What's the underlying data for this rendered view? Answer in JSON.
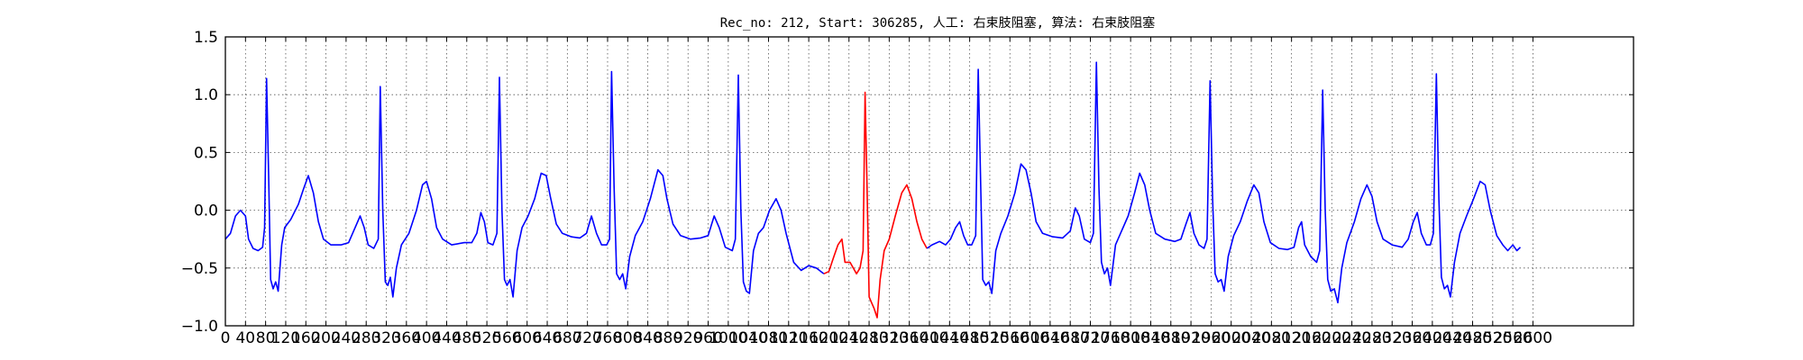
{
  "chart_data": {
    "type": "line",
    "title": "Rec_no: 212, Start: 306285, 人工: 右束肢阻塞, 算法: 右束肢阻塞",
    "xlabel": "",
    "ylabel": "",
    "xlim": [
      0,
      2800
    ],
    "ylim": [
      -1.0,
      1.5
    ],
    "grid": true,
    "grid_style": "dotted",
    "x_ticks": [
      0,
      40,
      80,
      120,
      160,
      200,
      240,
      280,
      320,
      360,
      400,
      440,
      480,
      520,
      560,
      600,
      640,
      680,
      720,
      760,
      800,
      840,
      880,
      920,
      960,
      1000,
      1040,
      1080,
      1120,
      1160,
      1200,
      1240,
      1280,
      1320,
      1360,
      1400,
      1440,
      1480,
      1520,
      1560,
      1600,
      1640,
      1680,
      1720,
      1760,
      1800,
      1840,
      1880,
      1920,
      1960,
      2000,
      2040,
      2080,
      2120,
      2160,
      2200,
      2240,
      2280,
      2320,
      2360,
      2400,
      2440,
      2480,
      2520,
      2560,
      2600
    ],
    "y_ticks": [
      "1.5",
      "1.0",
      "0.5",
      "0.0",
      "−0.5",
      "−1.0"
    ],
    "y_tick_values": [
      1.5,
      1.0,
      0.5,
      0.0,
      -0.5,
      -1.0
    ],
    "colors": {
      "normal": "#0000ff",
      "highlight": "#ff0000"
    },
    "series": [
      {
        "color": "#0000ff",
        "points": [
          [
            0,
            -0.25
          ],
          [
            10,
            -0.2
          ],
          [
            20,
            -0.05
          ],
          [
            30,
            0.0
          ],
          [
            40,
            -0.05
          ],
          [
            46,
            -0.25
          ],
          [
            55,
            -0.33
          ],
          [
            65,
            -0.35
          ],
          [
            74,
            -0.32
          ],
          [
            78,
            -0.15
          ],
          [
            82,
            1.14
          ],
          [
            86,
            0.3
          ],
          [
            90,
            -0.6
          ],
          [
            95,
            -0.68
          ],
          [
            100,
            -0.62
          ],
          [
            105,
            -0.7
          ],
          [
            112,
            -0.3
          ],
          [
            118,
            -0.15
          ],
          [
            130,
            -0.08
          ],
          [
            145,
            0.05
          ],
          [
            155,
            0.18
          ],
          [
            165,
            0.3
          ],
          [
            175,
            0.15
          ],
          [
            185,
            -0.1
          ],
          [
            195,
            -0.25
          ],
          [
            210,
            -0.3
          ],
          [
            230,
            -0.3
          ],
          [
            245,
            -0.28
          ],
          [
            258,
            -0.15
          ],
          [
            268,
            -0.05
          ],
          [
            276,
            -0.15
          ],
          [
            284,
            -0.3
          ],
          [
            295,
            -0.33
          ],
          [
            304,
            -0.25
          ],
          [
            308,
            1.07
          ],
          [
            313,
            0.0
          ],
          [
            318,
            -0.62
          ],
          [
            323,
            -0.65
          ],
          [
            328,
            -0.58
          ],
          [
            333,
            -0.75
          ],
          [
            340,
            -0.5
          ],
          [
            350,
            -0.3
          ],
          [
            365,
            -0.2
          ],
          [
            380,
            0.0
          ],
          [
            392,
            0.22
          ],
          [
            400,
            0.25
          ],
          [
            410,
            0.1
          ],
          [
            420,
            -0.15
          ],
          [
            432,
            -0.25
          ],
          [
            450,
            -0.3
          ],
          [
            475,
            -0.28
          ],
          [
            490,
            -0.28
          ],
          [
            500,
            -0.2
          ],
          [
            508,
            -0.02
          ],
          [
            515,
            -0.1
          ],
          [
            522,
            -0.28
          ],
          [
            532,
            -0.3
          ],
          [
            540,
            -0.2
          ],
          [
            545,
            1.15
          ],
          [
            550,
            0.0
          ],
          [
            555,
            -0.6
          ],
          [
            560,
            -0.65
          ],
          [
            566,
            -0.6
          ],
          [
            572,
            -0.75
          ],
          [
            580,
            -0.35
          ],
          [
            590,
            -0.15
          ],
          [
            602,
            -0.05
          ],
          [
            615,
            0.1
          ],
          [
            628,
            0.32
          ],
          [
            638,
            0.3
          ],
          [
            646,
            0.12
          ],
          [
            658,
            -0.12
          ],
          [
            670,
            -0.2
          ],
          [
            688,
            -0.23
          ],
          [
            705,
            -0.24
          ],
          [
            718,
            -0.2
          ],
          [
            728,
            -0.05
          ],
          [
            738,
            -0.2
          ],
          [
            748,
            -0.3
          ],
          [
            758,
            -0.3
          ],
          [
            764,
            -0.25
          ],
          [
            768,
            1.2
          ],
          [
            773,
            0.2
          ],
          [
            778,
            -0.55
          ],
          [
            784,
            -0.6
          ],
          [
            790,
            -0.55
          ],
          [
            796,
            -0.68
          ],
          [
            804,
            -0.4
          ],
          [
            815,
            -0.22
          ],
          [
            830,
            -0.1
          ],
          [
            845,
            0.1
          ],
          [
            860,
            0.35
          ],
          [
            870,
            0.3
          ],
          [
            878,
            0.1
          ],
          [
            890,
            -0.12
          ],
          [
            905,
            -0.22
          ],
          [
            925,
            -0.25
          ],
          [
            945,
            -0.24
          ],
          [
            960,
            -0.22
          ],
          [
            972,
            -0.05
          ],
          [
            982,
            -0.15
          ],
          [
            994,
            -0.32
          ],
          [
            1008,
            -0.35
          ],
          [
            1014,
            -0.25
          ],
          [
            1020,
            1.17
          ],
          [
            1025,
            0.0
          ],
          [
            1030,
            -0.62
          ],
          [
            1036,
            -0.7
          ],
          [
            1042,
            -0.72
          ],
          [
            1050,
            -0.35
          ],
          [
            1060,
            -0.2
          ],
          [
            1070,
            -0.15
          ],
          [
            1082,
            0.0
          ],
          [
            1095,
            0.1
          ],
          [
            1105,
            0.0
          ],
          [
            1115,
            -0.2
          ],
          [
            1130,
            -0.45
          ],
          [
            1145,
            -0.52
          ],
          [
            1160,
            -0.48
          ],
          [
            1175,
            -0.5
          ],
          [
            1190,
            -0.55
          ]
        ]
      },
      {
        "color": "#ff0000",
        "points": [
          [
            1190,
            -0.55
          ],
          [
            1200,
            -0.53
          ],
          [
            1210,
            -0.4
          ],
          [
            1218,
            -0.3
          ],
          [
            1226,
            -0.25
          ],
          [
            1232,
            -0.45
          ],
          [
            1242,
            -0.45
          ],
          [
            1255,
            -0.55
          ],
          [
            1262,
            -0.5
          ],
          [
            1268,
            -0.35
          ],
          [
            1272,
            1.02
          ],
          [
            1276,
            0.2
          ],
          [
            1280,
            -0.75
          ],
          [
            1285,
            -0.8
          ],
          [
            1290,
            -0.85
          ],
          [
            1296,
            -0.93
          ],
          [
            1302,
            -0.6
          ],
          [
            1310,
            -0.35
          ],
          [
            1320,
            -0.25
          ],
          [
            1332,
            -0.05
          ],
          [
            1345,
            0.15
          ],
          [
            1355,
            0.22
          ],
          [
            1365,
            0.1
          ],
          [
            1375,
            -0.1
          ],
          [
            1385,
            -0.25
          ],
          [
            1395,
            -0.33
          ]
        ]
      },
      {
        "color": "#0000ff",
        "points": [
          [
            1395,
            -0.33
          ],
          [
            1405,
            -0.3
          ],
          [
            1420,
            -0.27
          ],
          [
            1432,
            -0.3
          ],
          [
            1442,
            -0.25
          ],
          [
            1452,
            -0.15
          ],
          [
            1460,
            -0.1
          ],
          [
            1468,
            -0.22
          ],
          [
            1476,
            -0.3
          ],
          [
            1484,
            -0.3
          ],
          [
            1492,
            -0.22
          ],
          [
            1497,
            1.22
          ],
          [
            1502,
            0.2
          ],
          [
            1506,
            -0.6
          ],
          [
            1512,
            -0.65
          ],
          [
            1518,
            -0.62
          ],
          [
            1524,
            -0.72
          ],
          [
            1532,
            -0.35
          ],
          [
            1542,
            -0.2
          ],
          [
            1556,
            -0.05
          ],
          [
            1570,
            0.15
          ],
          [
            1582,
            0.4
          ],
          [
            1592,
            0.35
          ],
          [
            1602,
            0.15
          ],
          [
            1612,
            -0.1
          ],
          [
            1625,
            -0.2
          ],
          [
            1645,
            -0.23
          ],
          [
            1665,
            -0.24
          ],
          [
            1680,
            -0.18
          ],
          [
            1690,
            0.02
          ],
          [
            1698,
            -0.05
          ],
          [
            1708,
            -0.25
          ],
          [
            1720,
            -0.28
          ],
          [
            1726,
            -0.2
          ],
          [
            1732,
            1.28
          ],
          [
            1737,
            0.2
          ],
          [
            1742,
            -0.45
          ],
          [
            1748,
            -0.55
          ],
          [
            1754,
            -0.5
          ],
          [
            1760,
            -0.65
          ],
          [
            1770,
            -0.3
          ],
          [
            1782,
            -0.18
          ],
          [
            1795,
            -0.05
          ],
          [
            1808,
            0.15
          ],
          [
            1818,
            0.32
          ],
          [
            1828,
            0.22
          ],
          [
            1838,
            0.0
          ],
          [
            1850,
            -0.2
          ],
          [
            1868,
            -0.25
          ],
          [
            1888,
            -0.27
          ],
          [
            1900,
            -0.25
          ],
          [
            1910,
            -0.12
          ],
          [
            1918,
            -0.02
          ],
          [
            1926,
            -0.2
          ],
          [
            1936,
            -0.3
          ],
          [
            1946,
            -0.33
          ],
          [
            1952,
            -0.25
          ],
          [
            1958,
            1.12
          ],
          [
            1963,
            0.1
          ],
          [
            1968,
            -0.55
          ],
          [
            1974,
            -0.62
          ],
          [
            1980,
            -0.6
          ],
          [
            1986,
            -0.7
          ],
          [
            1994,
            -0.4
          ],
          [
            2005,
            -0.22
          ],
          [
            2018,
            -0.1
          ],
          [
            2032,
            0.08
          ],
          [
            2045,
            0.22
          ],
          [
            2055,
            0.15
          ],
          [
            2065,
            -0.1
          ],
          [
            2078,
            -0.28
          ],
          [
            2095,
            -0.33
          ],
          [
            2112,
            -0.34
          ],
          [
            2125,
            -0.32
          ],
          [
            2134,
            -0.15
          ],
          [
            2140,
            -0.1
          ],
          [
            2146,
            -0.3
          ],
          [
            2158,
            -0.4
          ],
          [
            2170,
            -0.45
          ],
          [
            2176,
            -0.35
          ],
          [
            2182,
            1.04
          ],
          [
            2187,
            0.0
          ],
          [
            2192,
            -0.6
          ],
          [
            2198,
            -0.7
          ],
          [
            2205,
            -0.68
          ],
          [
            2212,
            -0.8
          ],
          [
            2220,
            -0.5
          ],
          [
            2230,
            -0.28
          ],
          [
            2245,
            -0.1
          ],
          [
            2258,
            0.1
          ],
          [
            2270,
            0.22
          ],
          [
            2280,
            0.12
          ],
          [
            2290,
            -0.1
          ],
          [
            2302,
            -0.25
          ],
          [
            2320,
            -0.3
          ],
          [
            2340,
            -0.32
          ],
          [
            2352,
            -0.25
          ],
          [
            2362,
            -0.1
          ],
          [
            2370,
            -0.02
          ],
          [
            2378,
            -0.2
          ],
          [
            2388,
            -0.3
          ],
          [
            2396,
            -0.3
          ],
          [
            2402,
            -0.2
          ],
          [
            2408,
            1.18
          ],
          [
            2413,
            0.1
          ],
          [
            2418,
            -0.58
          ],
          [
            2424,
            -0.68
          ],
          [
            2430,
            -0.65
          ],
          [
            2436,
            -0.75
          ],
          [
            2444,
            -0.45
          ],
          [
            2455,
            -0.2
          ],
          [
            2468,
            -0.05
          ],
          [
            2482,
            0.1
          ],
          [
            2495,
            0.25
          ],
          [
            2505,
            0.22
          ],
          [
            2515,
            0.0
          ],
          [
            2528,
            -0.22
          ],
          [
            2540,
            -0.3
          ],
          [
            2550,
            -0.35
          ],
          [
            2560,
            -0.3
          ],
          [
            2568,
            -0.35
          ],
          [
            2575,
            -0.32
          ]
        ]
      }
    ]
  }
}
